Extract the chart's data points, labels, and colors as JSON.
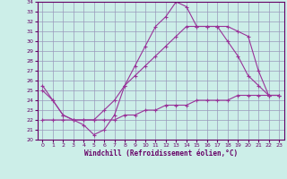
{
  "xlabel": "Windchill (Refroidissement éolien,°C)",
  "background_color": "#cceee8",
  "grid_color": "#9999bb",
  "line_color": "#993399",
  "xlim": [
    -0.5,
    23.5
  ],
  "ylim": [
    20,
    34
  ],
  "xticks": [
    0,
    1,
    2,
    3,
    4,
    5,
    6,
    7,
    8,
    9,
    10,
    11,
    12,
    13,
    14,
    15,
    16,
    17,
    18,
    19,
    20,
    21,
    22,
    23
  ],
  "yticks": [
    20,
    21,
    22,
    23,
    24,
    25,
    26,
    27,
    28,
    29,
    30,
    31,
    32,
    33,
    34
  ],
  "curve1_x": [
    0,
    1,
    2,
    3,
    4,
    5,
    6,
    7,
    8,
    9,
    10,
    11,
    12,
    13,
    14,
    15,
    16,
    17,
    18,
    19,
    20,
    21,
    22,
    23
  ],
  "curve1_y": [
    25.5,
    24.0,
    22.5,
    22.0,
    21.5,
    20.5,
    21.0,
    22.5,
    25.5,
    27.5,
    29.5,
    31.5,
    32.5,
    34.0,
    33.5,
    31.5,
    31.5,
    31.5,
    30.0,
    28.5,
    26.5,
    25.5,
    24.5,
    24.5
  ],
  "curve2_x": [
    0,
    1,
    2,
    3,
    4,
    5,
    6,
    7,
    8,
    9,
    10,
    11,
    12,
    13,
    14,
    15,
    16,
    17,
    18,
    19,
    20,
    21,
    22,
    23
  ],
  "curve2_y": [
    25.0,
    24.0,
    22.5,
    22.0,
    22.0,
    22.0,
    23.0,
    24.0,
    25.5,
    26.5,
    27.5,
    28.5,
    29.5,
    30.5,
    31.5,
    31.5,
    31.5,
    31.5,
    31.5,
    31.0,
    30.5,
    27.0,
    24.5,
    24.5
  ],
  "curve3_x": [
    0,
    1,
    2,
    3,
    4,
    5,
    6,
    7,
    8,
    9,
    10,
    11,
    12,
    13,
    14,
    15,
    16,
    17,
    18,
    19,
    20,
    21,
    22,
    23
  ],
  "curve3_y": [
    22.0,
    22.0,
    22.0,
    22.0,
    22.0,
    22.0,
    22.0,
    22.0,
    22.5,
    22.5,
    23.0,
    23.0,
    23.5,
    23.5,
    23.5,
    24.0,
    24.0,
    24.0,
    24.0,
    24.5,
    24.5,
    24.5,
    24.5,
    24.5
  ]
}
